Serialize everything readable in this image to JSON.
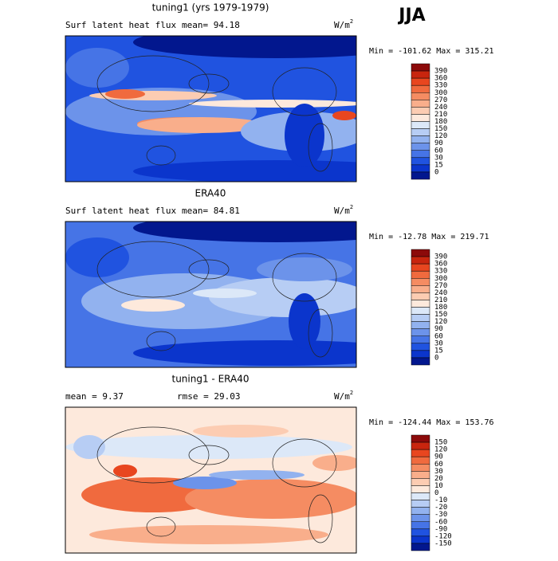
{
  "season": "JJA",
  "panels": [
    {
      "title": "tuning1 (yrs 1979-1979)",
      "left_label": "Surf latent heat flux",
      "stat_label": "mean=  94.18",
      "units": {
        "base": "W/m",
        "exp": "2"
      },
      "range_label": "Min = -101.62 Max = 315.21",
      "colorbar": {
        "levels": [
          390,
          360,
          330,
          300,
          270,
          240,
          210,
          180,
          150,
          120,
          90,
          60,
          30,
          15,
          0
        ],
        "colors": [
          "#8c0a0a",
          "#c8250e",
          "#e8461f",
          "#f06a3e",
          "#f58c62",
          "#f9ae8b",
          "#fcccb2",
          "#fde9dc",
          "#dce8f8",
          "#b7cdf4",
          "#92b2ef",
          "#6c93ea",
          "#4674e6",
          "#2053e0",
          "#0b35cc",
          "#02178e"
        ]
      },
      "map": "model"
    },
    {
      "title": "ERA40",
      "left_label": "Surf latent heat flux",
      "stat_label": "mean=  84.81",
      "units": {
        "base": "W/m",
        "exp": "2"
      },
      "range_label": "Min = -12.78 Max = 219.71",
      "colorbar": {
        "levels": [
          390,
          360,
          330,
          300,
          270,
          240,
          210,
          180,
          150,
          120,
          90,
          60,
          30,
          15,
          0
        ],
        "colors": [
          "#8c0a0a",
          "#c8250e",
          "#e8461f",
          "#f06a3e",
          "#f58c62",
          "#f9ae8b",
          "#fcccb2",
          "#fde9dc",
          "#dce8f8",
          "#b7cdf4",
          "#92b2ef",
          "#6c93ea",
          "#4674e6",
          "#2053e0",
          "#0b35cc",
          "#02178e"
        ]
      },
      "map": "obs"
    },
    {
      "title": "tuning1 - ERA40",
      "left_label": "mean =   9.37",
      "stat_label": "rmse =  29.03",
      "units": {
        "base": "W/m",
        "exp": "2"
      },
      "range_label": "Min = -124.44 Max = 153.76",
      "colorbar": {
        "levels": [
          150,
          120,
          90,
          60,
          30,
          20,
          10,
          0,
          -10,
          -20,
          -30,
          -60,
          -90,
          -120,
          -150
        ],
        "colors": [
          "#8c0a0a",
          "#c8250e",
          "#e8461f",
          "#f06a3e",
          "#f58c62",
          "#f9ae8b",
          "#fcccb2",
          "#fde9dc",
          "#dce8f8",
          "#b7cdf4",
          "#92b2ef",
          "#6c93ea",
          "#4674e6",
          "#2053e0",
          "#0b35cc",
          "#02178e"
        ]
      },
      "map": "diff"
    }
  ]
}
